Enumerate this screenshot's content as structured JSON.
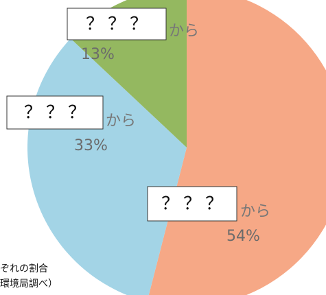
{
  "chart_data": {
    "type": "pie",
    "categories": [
      "？？？",
      "？？？",
      "？？？"
    ],
    "connector": "から",
    "values": [
      54,
      33,
      13
    ],
    "value_labels": [
      "54%",
      "33%",
      "13%"
    ],
    "colors": [
      "#f6a886",
      "#a3d4e6",
      "#94b860"
    ],
    "note": [
      "ぞれの割合",
      "環境局調べ）"
    ]
  }
}
